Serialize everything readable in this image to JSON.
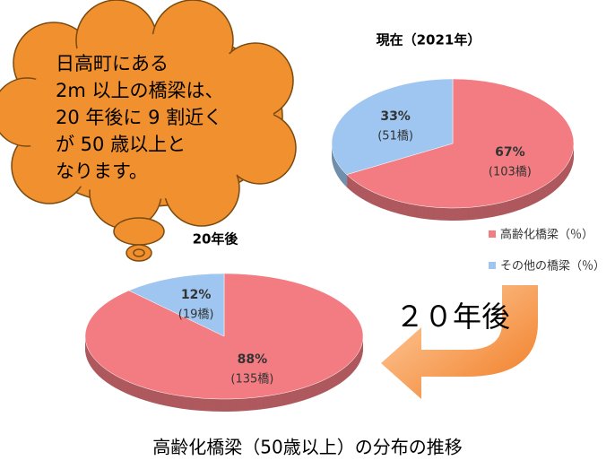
{
  "chart_data": [
    {
      "type": "pie",
      "title": "現在（2021年）",
      "categories": [
        "高齢化橋梁（％）",
        "その他の橋梁（％）"
      ],
      "values": [
        67,
        33
      ],
      "value_labels": [
        "67%",
        "33%"
      ],
      "counts": [
        103,
        51
      ],
      "count_labels": [
        "(103橋)",
        "(51橋)"
      ],
      "colors": [
        "#f27c82",
        "#9ec6f0"
      ],
      "legend": "right"
    },
    {
      "type": "pie",
      "title": "20年後",
      "categories": [
        "高齢化橋梁（％）",
        "その他の橋梁（％）"
      ],
      "values": [
        88,
        12
      ],
      "value_labels": [
        "88%",
        "12%"
      ],
      "counts": [
        135,
        19
      ],
      "count_labels": [
        "(135橋)",
        "(19橋)"
      ],
      "colors": [
        "#f27c82",
        "#9ec6f0"
      ]
    }
  ],
  "bubble_text": [
    "日高町にある",
    "2m 以上の橋梁は、",
    "20 年後に 9 割近く",
    "が 50 歳以上と",
    "なります。"
  ],
  "arrow_label": "２０年後",
  "caption": "高齢化橋梁（50歳以上）の分布の推移"
}
